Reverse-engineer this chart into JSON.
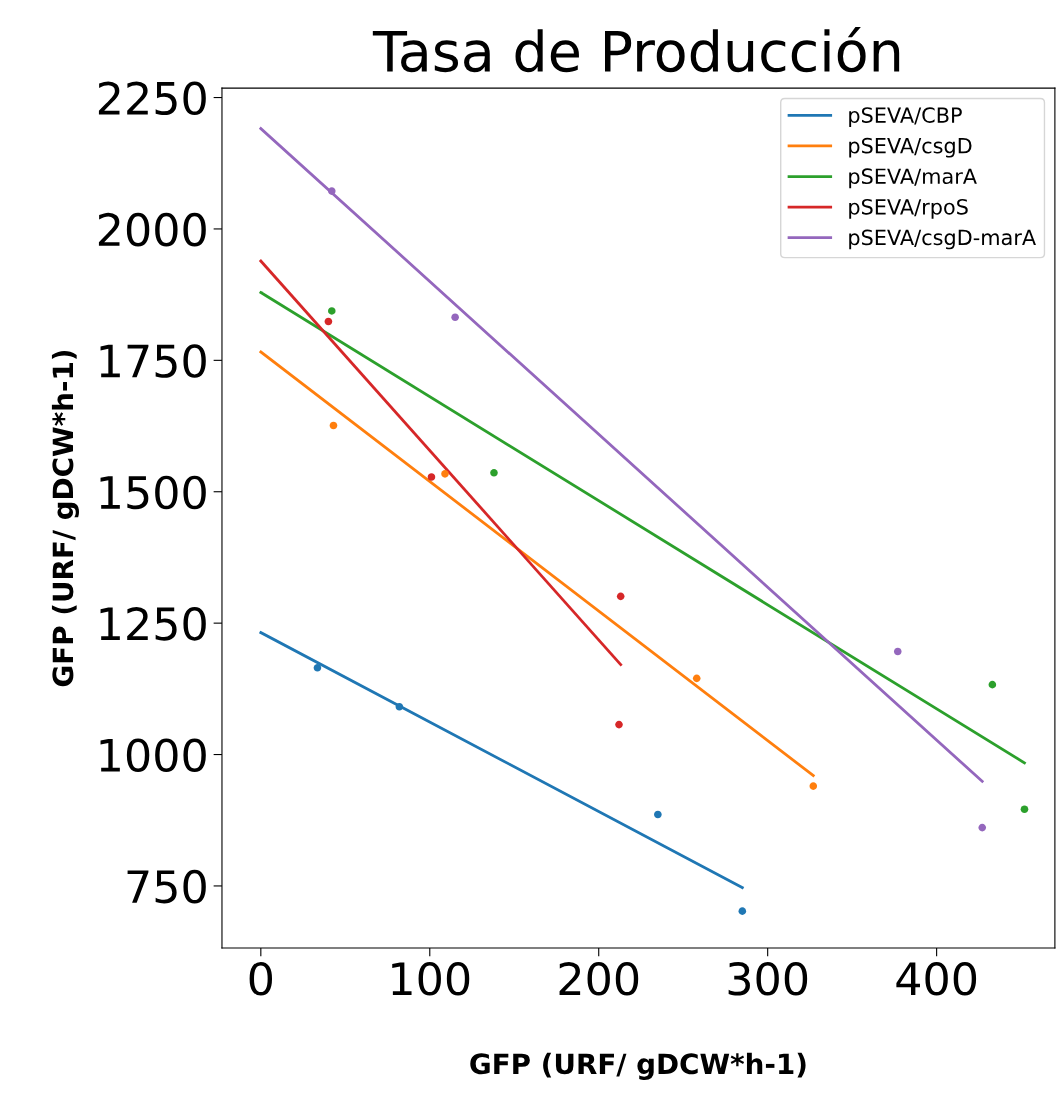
{
  "chart_data": {
    "type": "scatter",
    "title": "Tasa de Producción",
    "xlabel": "GFP (URF/ gDCW*h-1)",
    "ylabel": "GFP (URF/ gDCW*h-1)",
    "xlim": [
      -23,
      470
    ],
    "ylim": [
      632,
      2268
    ],
    "xticks": [
      0,
      100,
      200,
      300,
      400
    ],
    "yticks": [
      750,
      1000,
      1250,
      1500,
      1750,
      2000,
      2250
    ],
    "legend": "top right",
    "grid": false,
    "series": [
      {
        "marker": "circle",
        "color": "#1f77b4",
        "x": [
          33.5,
          82,
          235,
          285
        ],
        "values": [
          1165,
          1091,
          886,
          702
        ]
      },
      {
        "marker": "circle",
        "color": "#ff7f0e",
        "x": [
          43,
          109,
          258,
          327
        ],
        "values": [
          1626,
          1534,
          1145,
          940
        ]
      },
      {
        "marker": "circle",
        "color": "#2ca02c",
        "x": [
          42,
          138,
          433,
          452
        ],
        "values": [
          1844,
          1536,
          1133,
          896
        ]
      },
      {
        "marker": "circle",
        "color": "#d62728",
        "x": [
          40,
          101,
          213,
          212
        ],
        "values": [
          1824,
          1528,
          1301,
          1057
        ]
      },
      {
        "marker": "circle",
        "color": "#9467bd",
        "x": [
          42,
          115,
          377,
          427
        ],
        "values": [
          2072,
          1832,
          1196,
          861
        ]
      },
      {
        "type": "line",
        "marker": "none",
        "name": "pSEVA/CBP",
        "color": "#1f77b4",
        "x": [
          0,
          285
        ],
        "values": [
          1232,
          747
        ]
      },
      {
        "type": "line",
        "marker": "none",
        "name": "pSEVA/csgD",
        "color": "#ff7f0e",
        "x": [
          0,
          327
        ],
        "values": [
          1766,
          960
        ]
      },
      {
        "type": "line",
        "marker": "none",
        "name": "pSEVA/marA",
        "color": "#2ca02c",
        "x": [
          0,
          452
        ],
        "values": [
          1879,
          984
        ]
      },
      {
        "type": "line",
        "marker": "none",
        "name": "pSEVA/rpoS",
        "color": "#d62728",
        "x": [
          0,
          213
        ],
        "values": [
          1939,
          1171
        ]
      },
      {
        "type": "line",
        "marker": "none",
        "name": "pSEVA/csgD-marA",
        "color": "#9467bd",
        "x": [
          0,
          427
        ],
        "values": [
          2191,
          949
        ]
      }
    ]
  }
}
